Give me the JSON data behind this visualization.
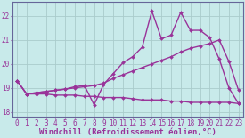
{
  "xlabel": "Windchill (Refroidissement éolien,°C)",
  "xlim": [
    -0.5,
    23.5
  ],
  "ylim": [
    17.8,
    22.6
  ],
  "yticks": [
    18,
    19,
    20,
    21,
    22
  ],
  "xticks": [
    0,
    1,
    2,
    3,
    4,
    5,
    6,
    7,
    8,
    9,
    10,
    11,
    12,
    13,
    14,
    15,
    16,
    17,
    18,
    19,
    20,
    21,
    22,
    23
  ],
  "bg_color": "#c8eaea",
  "grid_color": "#aacccc",
  "line_color": "#993399",
  "lines": [
    {
      "x": [
        0,
        1,
        2,
        3,
        4,
        5,
        6,
        7,
        8,
        9,
        10,
        11,
        12,
        13,
        14,
        15,
        16,
        17,
        18,
        19,
        20,
        21,
        22,
        23
      ],
      "y": [
        19.3,
        18.75,
        18.75,
        18.75,
        18.7,
        18.7,
        18.7,
        18.65,
        18.65,
        18.6,
        18.6,
        18.6,
        18.55,
        18.5,
        18.5,
        18.5,
        18.45,
        18.45,
        18.4,
        18.4,
        18.4,
        18.4,
        18.4,
        18.35
      ],
      "marker": "D",
      "markersize": 2.0,
      "linewidth": 1.0
    },
    {
      "x": [
        0,
        1,
        2,
        3,
        4,
        5,
        6,
        7,
        8,
        9,
        10,
        11,
        12,
        13,
        14,
        15,
        16,
        17,
        18,
        19,
        20,
        21,
        22,
        23
      ],
      "y": [
        19.3,
        18.75,
        18.8,
        18.85,
        18.9,
        18.95,
        19.0,
        19.05,
        19.1,
        19.2,
        19.4,
        19.55,
        19.7,
        19.85,
        20.0,
        20.15,
        20.3,
        20.5,
        20.65,
        20.75,
        20.85,
        21.0,
        20.1,
        18.9
      ],
      "marker": "D",
      "markersize": 2.0,
      "linewidth": 1.0
    },
    {
      "x": [
        0,
        1,
        2,
        3,
        4,
        5,
        6,
        7,
        8,
        9,
        10,
        11,
        12,
        13,
        14,
        15,
        16,
        17,
        18,
        19,
        20,
        21,
        22,
        23
      ],
      "y": [
        19.3,
        18.75,
        18.8,
        18.85,
        18.9,
        18.95,
        19.05,
        19.1,
        18.3,
        19.15,
        19.6,
        20.05,
        20.3,
        20.7,
        22.2,
        21.05,
        21.2,
        22.15,
        21.4,
        21.4,
        21.1,
        20.2,
        19.0,
        18.35
      ],
      "marker": "D",
      "markersize": 2.0,
      "linewidth": 1.0
    }
  ],
  "label_fontsize": 6.5,
  "tick_fontsize": 5.5
}
